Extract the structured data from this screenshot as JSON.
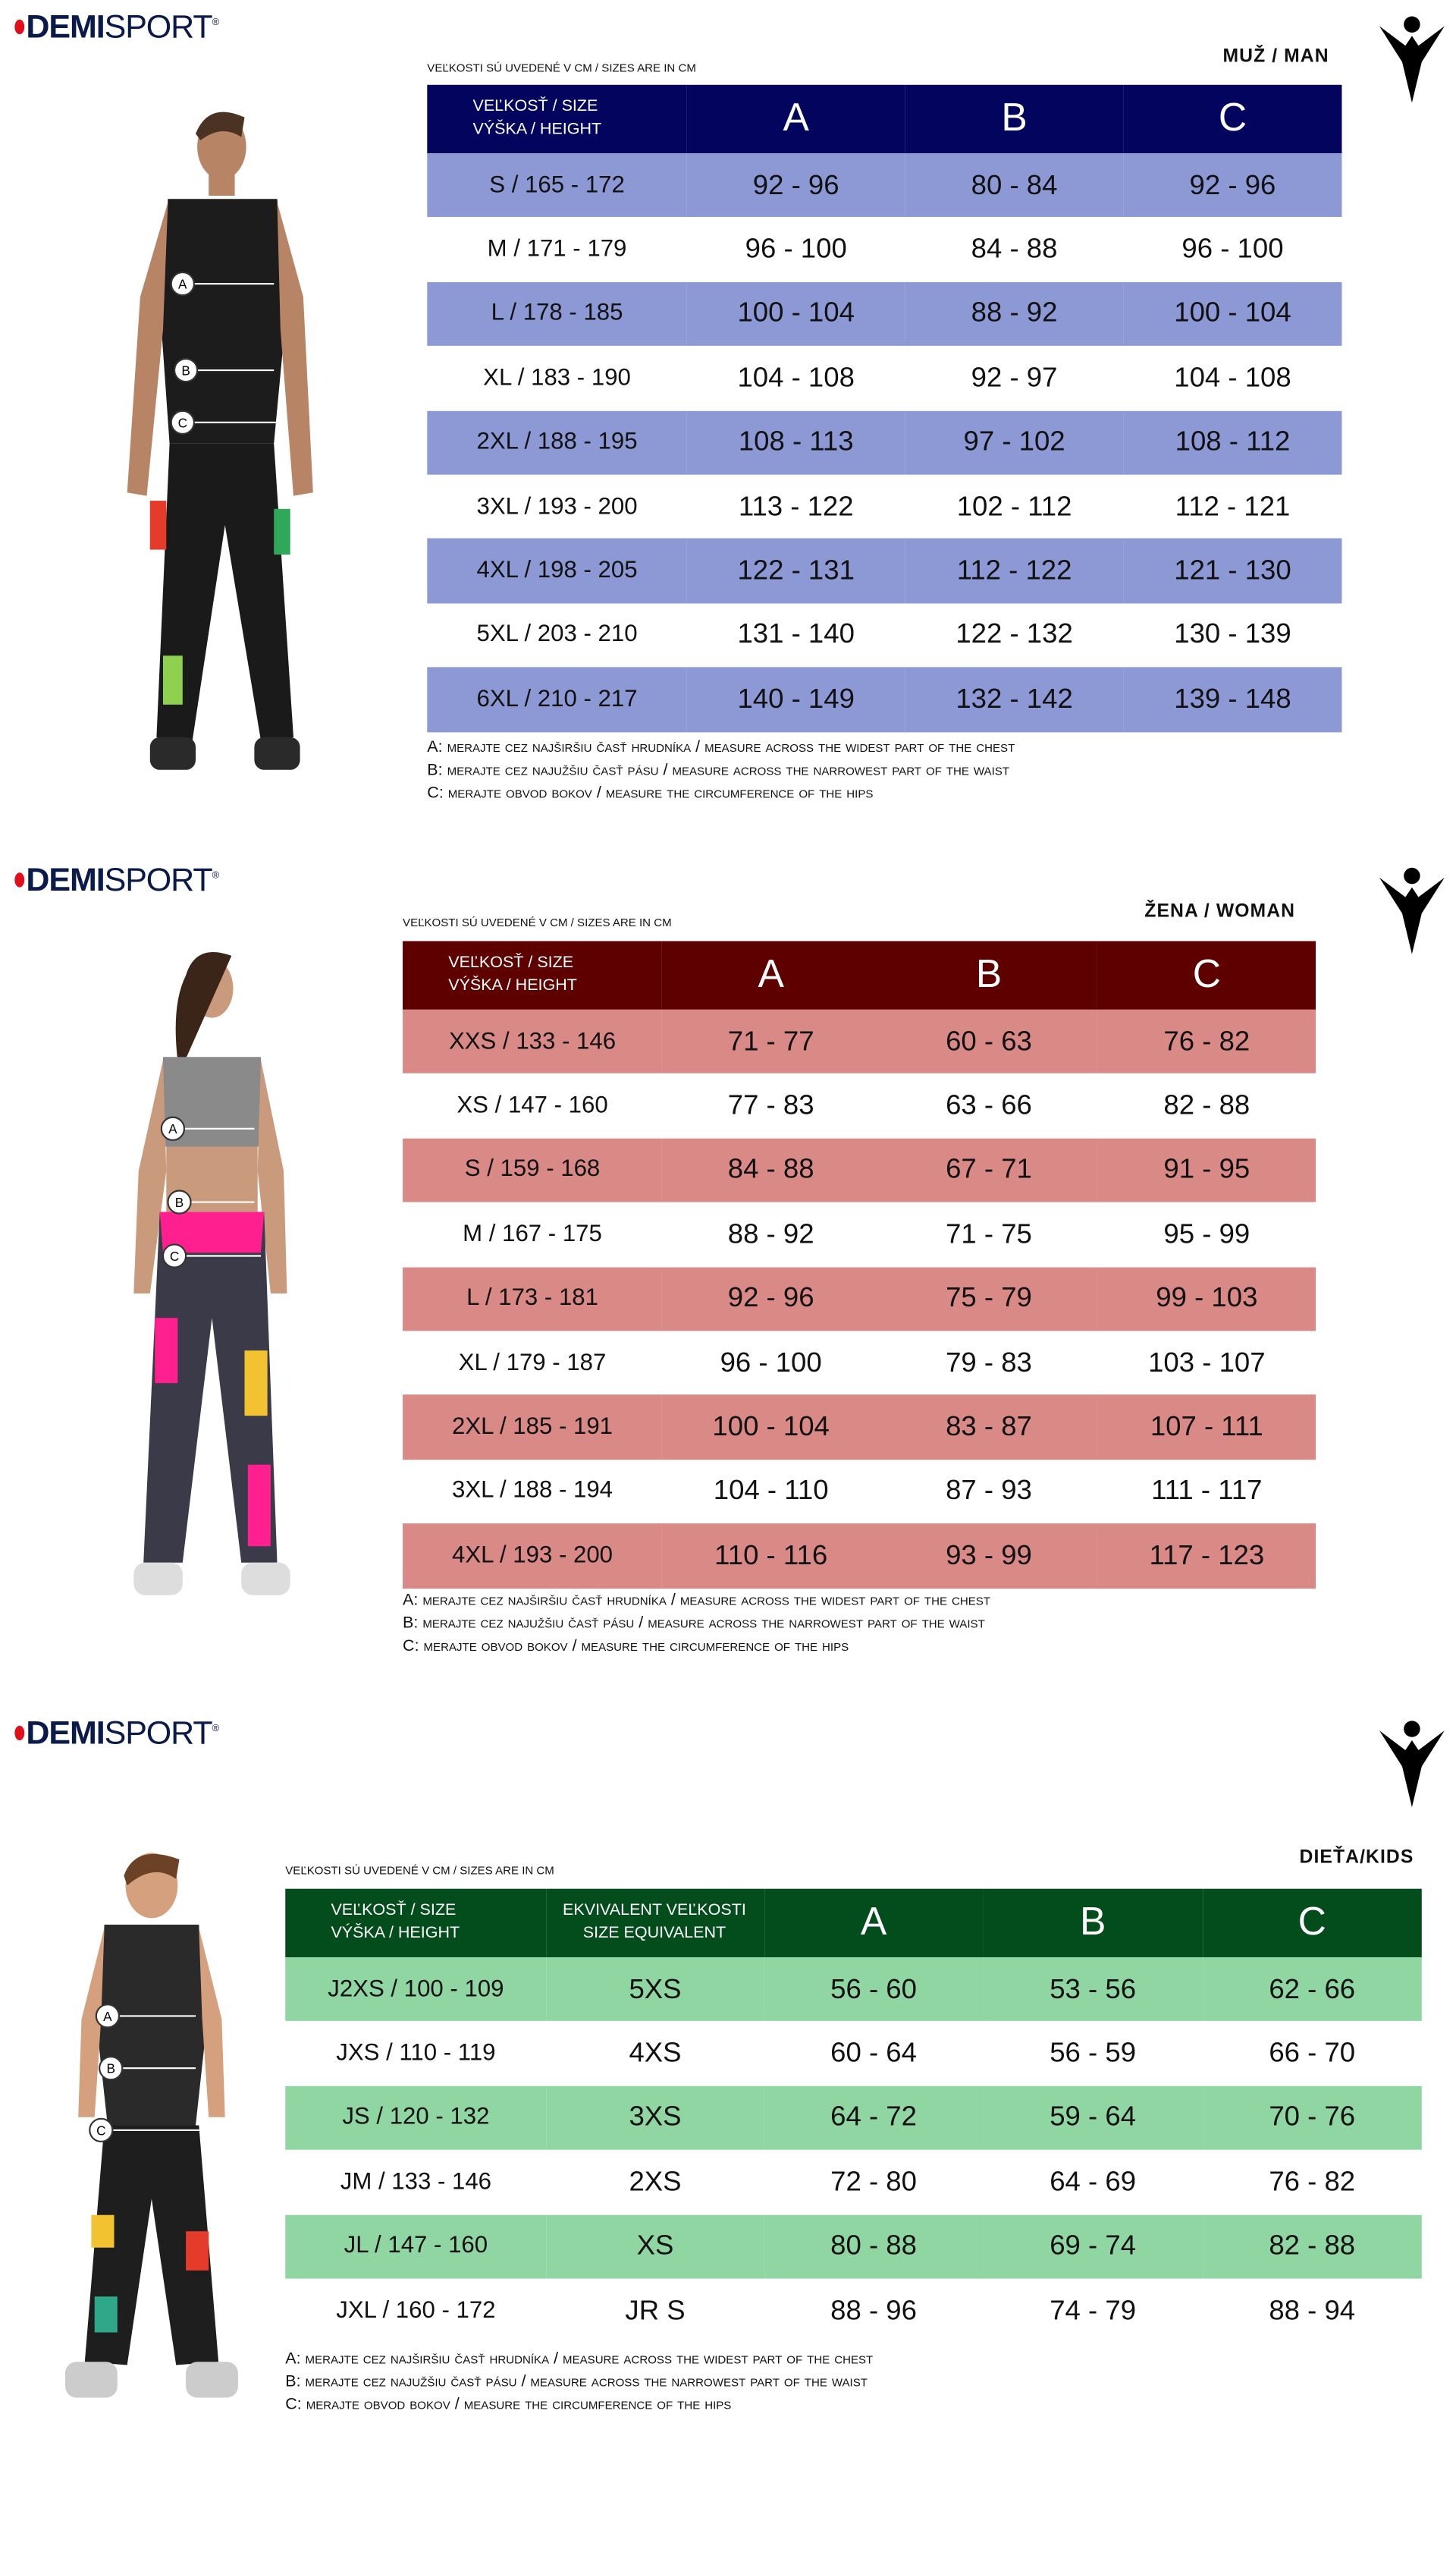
{
  "brand": {
    "logo_text_bold": "DEMI",
    "logo_text": "SPORT",
    "registered": "®"
  },
  "colors": {
    "men_header": "#02045e",
    "men_stripe": "#8c99d4",
    "women_header": "#5e0000",
    "women_stripe": "#d98a87",
    "kids_header": "#034d1c",
    "kids_stripe": "#8fd6a2"
  },
  "men": {
    "category": "MUŽ / MAN",
    "units_note": "VEĽKOSTI SÚ UVEDENÉ V CM / SIZES ARE IN CM",
    "headers": [
      "VEĽKOSŤ / SIZE",
      "VÝŠKA / HEIGHT",
      "A",
      "B",
      "C"
    ],
    "rows": [
      [
        "S / 165 - 172",
        "92 - 96",
        "80 - 84",
        "92 - 96"
      ],
      [
        "M / 171 - 179",
        "96 - 100",
        "84 - 88",
        "96 - 100"
      ],
      [
        "L / 178 - 185",
        "100 - 104",
        "88 - 92",
        "100 - 104"
      ],
      [
        "XL / 183 - 190",
        "104 - 108",
        "92 - 97",
        "104 - 108"
      ],
      [
        "2XL / 188 - 195",
        "108 - 113",
        "97 - 102",
        "108 - 112"
      ],
      [
        "3XL / 193 - 200",
        "113 - 122",
        "102 - 112",
        "112 - 121"
      ],
      [
        "4XL / 198 - 205",
        "122 - 131",
        "112 - 122",
        "121 - 130"
      ],
      [
        "5XL / 203 - 210",
        "131 - 140",
        "122 - 132",
        "130 - 139"
      ],
      [
        "6XL / 210 - 217",
        "140 - 149",
        "132 - 142",
        "139 - 148"
      ]
    ],
    "notes": [
      "A: merajte cez najširšiu časť hrudníka / measure across the widest part of the chest",
      "B: merajte cez najužšiu časť pásu / measure across the narrowest part of the waist",
      "C: merajte obvod bokov / measure the circumference of the hips"
    ],
    "markers": [
      "A",
      "B",
      "C"
    ]
  },
  "women": {
    "category": "ŽENA / WOMAN",
    "units_note": "VEĽKOSTI SÚ UVEDENÉ V CM / SIZES ARE IN CM",
    "headers": [
      "VEĽKOSŤ / SIZE",
      "VÝŠKA / HEIGHT",
      "A",
      "B",
      "C"
    ],
    "rows": [
      [
        "XXS / 133 - 146",
        "71 - 77",
        "60 - 63",
        "76 - 82"
      ],
      [
        "XS / 147 - 160",
        "77 - 83",
        "63 - 66",
        "82 - 88"
      ],
      [
        "S / 159 - 168",
        "84 - 88",
        "67 - 71",
        "91 - 95"
      ],
      [
        "M / 167 - 175",
        "88 - 92",
        "71 - 75",
        "95 - 99"
      ],
      [
        "L / 173 - 181",
        "92 - 96",
        "75 - 79",
        "99 - 103"
      ],
      [
        "XL / 179 - 187",
        "96 - 100",
        "79 - 83",
        "103 - 107"
      ],
      [
        "2XL / 185 - 191",
        "100 - 104",
        "83 - 87",
        "107 - 111"
      ],
      [
        "3XL / 188 - 194",
        "104 - 110",
        "87 - 93",
        "111 - 117"
      ],
      [
        "4XL / 193 - 200",
        "110 - 116",
        "93 - 99",
        "117 - 123"
      ]
    ],
    "notes": [
      "A: merajte cez najširšiu časť hrudníka / measure across the widest part of the chest",
      "B: merajte cez najužšiu časť pásu / measure across the narrowest part of the waist",
      "C: merajte obvod bokov / measure the circumference of the hips"
    ],
    "markers": [
      "A",
      "B",
      "C"
    ]
  },
  "kids": {
    "category": "DIEŤA/KIDS",
    "units_note": "VEĽKOSTI SÚ UVEDENÉ V CM / SIZES ARE IN CM",
    "headers": [
      "VEĽKOSŤ / SIZE",
      "VÝŠKA / HEIGHT",
      "EKVIVALENT VEĽKOSTI",
      "SIZE EQUIVALENT",
      "A",
      "B",
      "C"
    ],
    "rows": [
      [
        "J2XS / 100 - 109",
        "5XS",
        "56 - 60",
        "53 - 56",
        "62 - 66"
      ],
      [
        "JXS / 110 - 119",
        "4XS",
        "60 - 64",
        "56 - 59",
        "66 - 70"
      ],
      [
        "JS / 120 - 132",
        "3XS",
        "64 - 72",
        "59 - 64",
        "70 - 76"
      ],
      [
        "JM / 133 - 146",
        "2XS",
        "72 - 80",
        "64 - 69",
        "76 - 82"
      ],
      [
        "JL / 147 - 160",
        "XS",
        "80 - 88",
        "69 - 74",
        "82 - 88"
      ],
      [
        "JXL / 160 - 172",
        "JR S",
        "88 - 96",
        "74 - 79",
        "88 - 94"
      ]
    ],
    "notes": [
      "A: merajte cez najširšiu časť hrudníka / measure across the widest part of the chest",
      "B: merajte cez najužšiu časť pásu / measure across the narrowest part of the waist",
      "C: merajte obvod bokov / measure the circumference of the hips"
    ],
    "markers": [
      "A",
      "B",
      "C"
    ]
  }
}
